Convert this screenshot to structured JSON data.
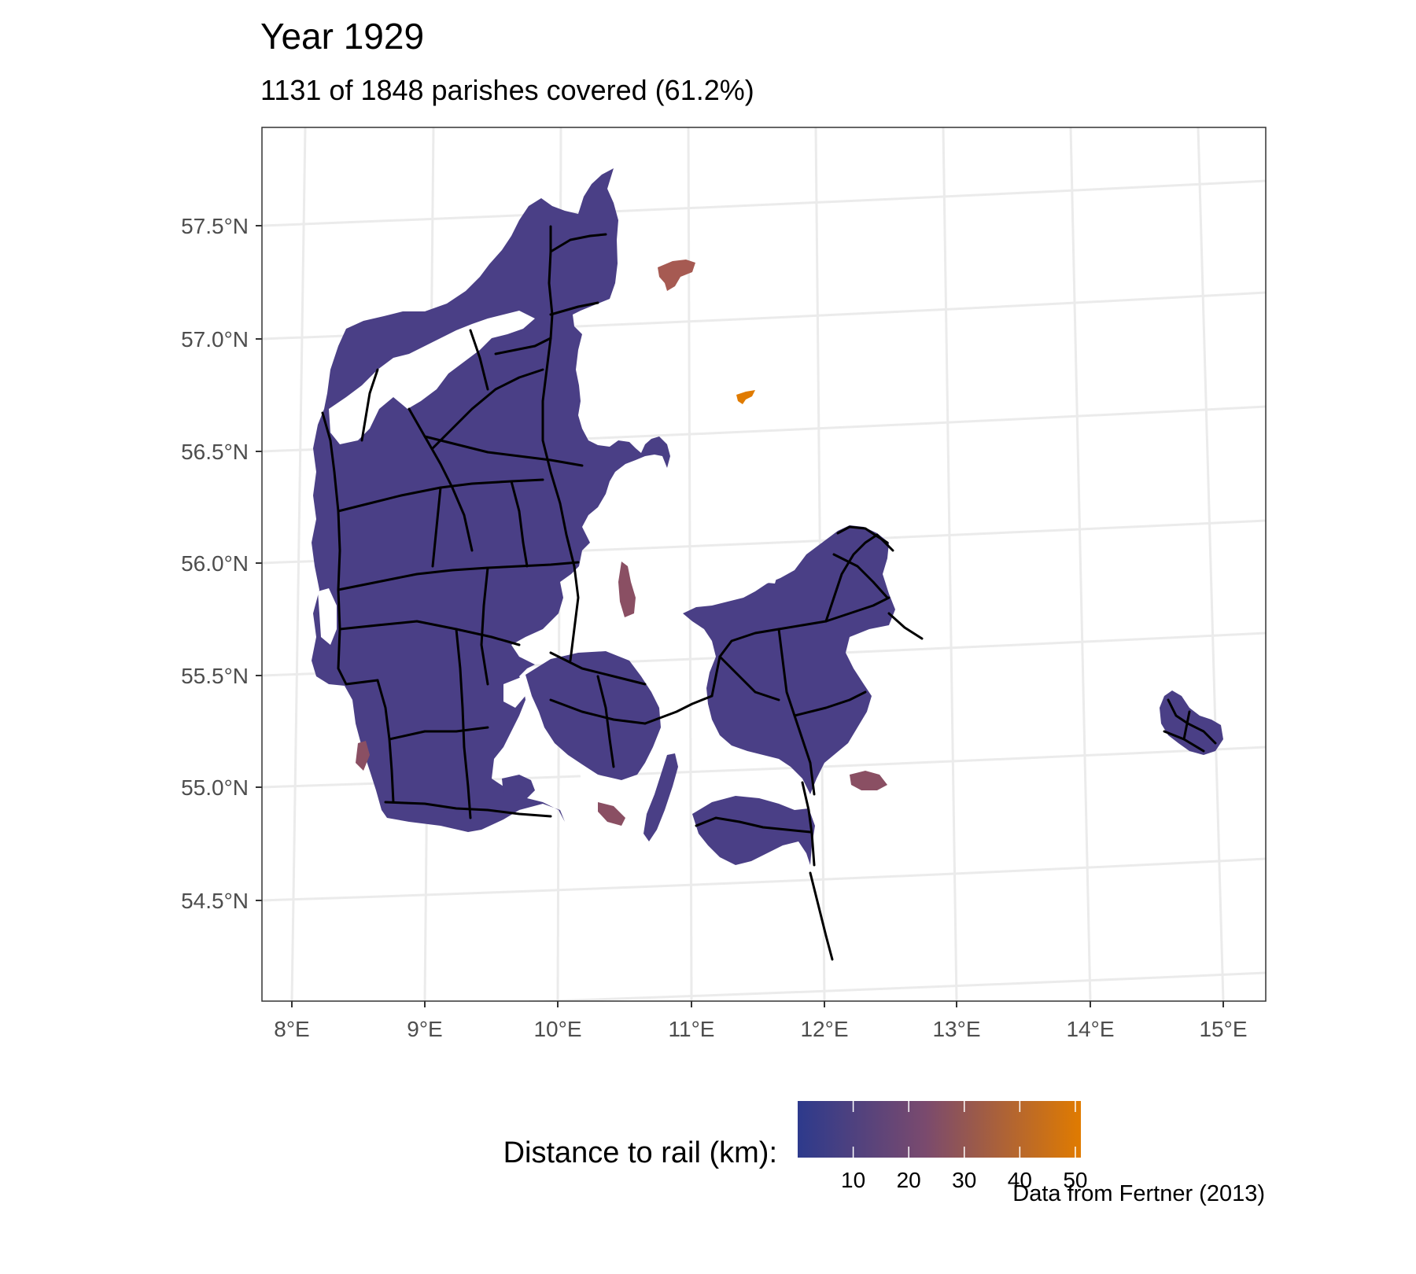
{
  "title": "Year 1929",
  "subtitle": "1131 of 1848 parishes covered (61.2%)",
  "caption": "Data from Fertner (2013)",
  "axes": {
    "lat_ticks": [
      "57.5°N",
      "57.0°N",
      "56.5°N",
      "56.0°N",
      "55.5°N",
      "55.0°N",
      "54.5°N"
    ],
    "lon_ticks": [
      "8°E",
      "9°E",
      "10°E",
      "11°E",
      "12°E",
      "13°E",
      "14°E",
      "15°E"
    ]
  },
  "legend": {
    "title": "Distance to rail (km):",
    "ticks": [
      "10",
      "20",
      "30",
      "40",
      "50"
    ],
    "min": 0,
    "max": 51,
    "color_low": "#2d3a8c",
    "color_mid": "#7a4a6e",
    "color_high": "#e07b00"
  },
  "colors": {
    "land": "#4a3f86",
    "land_far": "#8a4f63",
    "far_island": "#a65a52",
    "orange_island": "#e07b00",
    "rail": "#000000",
    "grid": "#ebebeb"
  }
}
